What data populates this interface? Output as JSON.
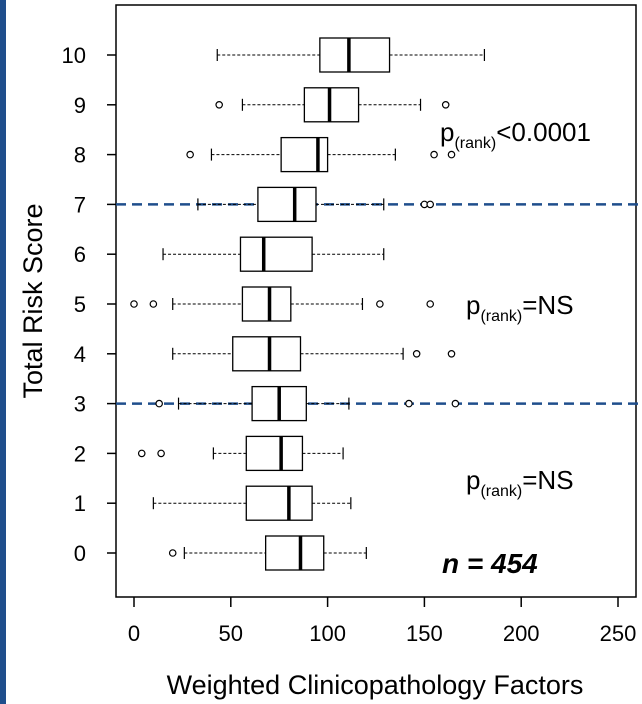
{
  "chart_data": {
    "type": "boxplot",
    "orientation": "horizontal",
    "xlabel": "Weighted Clinicopathology Factors",
    "ylabel": "Total Risk Score",
    "xlim": [
      -8,
      258
    ],
    "xticks": [
      0,
      50,
      100,
      150,
      200,
      250
    ],
    "x_tick_labels": [
      "0",
      "50",
      "100",
      "150",
      "200",
      "250"
    ],
    "categories": [
      "0",
      "1",
      "2",
      "3",
      "4",
      "5",
      "6",
      "7",
      "8",
      "9",
      "10"
    ],
    "boxes": [
      {
        "category": "0",
        "whisker_low": 26,
        "q1": 68,
        "median": 86,
        "q3": 98,
        "whisker_high": 120,
        "outliers": [
          20
        ]
      },
      {
        "category": "1",
        "whisker_low": 10,
        "q1": 58,
        "median": 80,
        "q3": 92,
        "whisker_high": 112,
        "outliers": []
      },
      {
        "category": "2",
        "whisker_low": 41,
        "q1": 58,
        "median": 76,
        "q3": 87,
        "whisker_high": 108,
        "outliers": [
          4,
          14
        ]
      },
      {
        "category": "3",
        "whisker_low": 23,
        "q1": 61,
        "median": 75,
        "q3": 89,
        "whisker_high": 111,
        "outliers": [
          13,
          142,
          166
        ]
      },
      {
        "category": "4",
        "whisker_low": 20,
        "q1": 51,
        "median": 70,
        "q3": 86,
        "whisker_high": 139,
        "outliers": [
          146,
          164
        ]
      },
      {
        "category": "5",
        "whisker_low": 20,
        "q1": 56,
        "median": 70,
        "q3": 81,
        "whisker_high": 118,
        "outliers": [
          0,
          10,
          127,
          153
        ]
      },
      {
        "category": "6",
        "whisker_low": 15,
        "q1": 55,
        "median": 67,
        "q3": 92,
        "whisker_high": 129,
        "outliers": []
      },
      {
        "category": "7",
        "whisker_low": 33,
        "q1": 64,
        "median": 83,
        "q3": 94,
        "whisker_high": 129,
        "outliers": [
          150,
          153
        ]
      },
      {
        "category": "8",
        "whisker_low": 40,
        "q1": 76,
        "median": 95,
        "q3": 100,
        "whisker_high": 135,
        "outliers": [
          29,
          155,
          164
        ]
      },
      {
        "category": "9",
        "whisker_low": 56,
        "q1": 88,
        "median": 101,
        "q3": 116,
        "whisker_high": 148,
        "outliers": [
          44,
          161
        ]
      },
      {
        "category": "10",
        "whisker_low": 43,
        "q1": 96,
        "median": 111,
        "q3": 132,
        "whisker_high": 181,
        "outliers": []
      }
    ],
    "reference_lines": [
      {
        "y": 7,
        "style": "dashed",
        "color": "#1f4e8c"
      },
      {
        "y": 3,
        "style": "dashed",
        "color": "#1f4e8c"
      }
    ],
    "annotations": [
      {
        "main": "p",
        "sub": "(rank)",
        "rest": "<0.0001"
      },
      {
        "main": "p",
        "sub": "(rank)",
        "rest": "=NS"
      },
      {
        "main": "p",
        "sub": "(rank)",
        "rest": "=NS"
      }
    ],
    "n_label": "n = 454"
  },
  "colors": {
    "accent_bar": "#1f4e8c",
    "reference_line": "#1f4e8c",
    "box_stroke": "#000000"
  }
}
